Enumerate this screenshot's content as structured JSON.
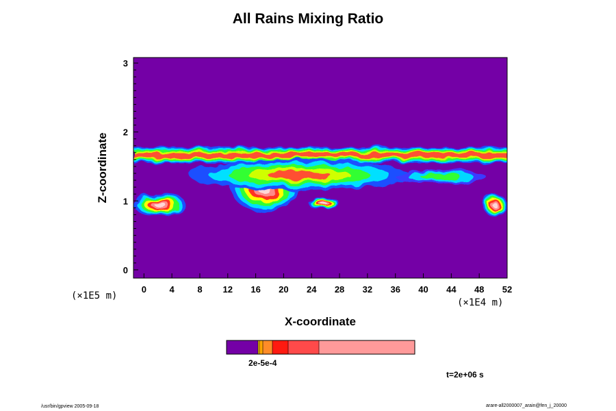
{
  "chart_data": {
    "type": "heatmap",
    "title": "All Rains Mixing Ratio",
    "xlabel": "X-coordinate",
    "ylabel": "Z-coordinate",
    "x_unit_label": "(×1E4 m)",
    "y_unit_label": "(×1E5 m)",
    "xlim": [
      -1.5,
      52
    ],
    "ylim": [
      -0.12,
      3.08
    ],
    "x_ticks": [
      0,
      4,
      8,
      12,
      16,
      20,
      24,
      28,
      32,
      36,
      40,
      44,
      48,
      52
    ],
    "y_ticks": [
      0,
      1,
      2,
      3
    ],
    "background_color": "#7400a6",
    "regions": [
      {
        "name": "upper band",
        "x": [
          -1.5,
          52
        ],
        "z": [
          1.55,
          1.78
        ],
        "level": "mid",
        "mode": "band"
      },
      {
        "name": "left cell",
        "x": [
          -1.5,
          6
        ],
        "z": [
          0.78,
          1.12
        ],
        "level": "high",
        "mode": "blob"
      },
      {
        "name": "right cell",
        "x": [
          48.5,
          52
        ],
        "z": [
          0.78,
          1.1
        ],
        "level": "high",
        "mode": "blob"
      },
      {
        "name": "central storm",
        "x": [
          12.5,
          22
        ],
        "z": [
          0.85,
          1.5
        ],
        "level": "high",
        "mode": "blob"
      },
      {
        "name": "anvil",
        "x": [
          6.5,
          38
        ],
        "z": [
          1.15,
          1.6
        ],
        "level": "mid",
        "mode": "blob"
      },
      {
        "name": "cell 25",
        "x": [
          23.5,
          28
        ],
        "z": [
          0.88,
          1.05
        ],
        "level": "high",
        "mode": "blob"
      },
      {
        "name": "thin tail",
        "x": [
          36,
          49
        ],
        "z": [
          1.25,
          1.45
        ],
        "level": "low",
        "mode": "blob"
      }
    ],
    "colorbar": {
      "label": "2e-5e-4",
      "bins": [
        {
          "color": "#7400a6",
          "width": 46
        },
        {
          "color": "#ffd700",
          "width": 2
        },
        {
          "color": "#ffa500",
          "width": 5
        },
        {
          "color": "#ff8c28",
          "width": 14
        },
        {
          "color": "#ff1a10",
          "width": 23
        },
        {
          "color": "#ff4a4a",
          "width": 45
        },
        {
          "color": "#ff9a9a",
          "width": 140
        }
      ]
    }
  },
  "time_label": "t=2e+06 s",
  "footer": {
    "left": "/usr/bin/gpview 2005-09-18",
    "right": "arare-all2000007_arain@fen_j_20000"
  }
}
